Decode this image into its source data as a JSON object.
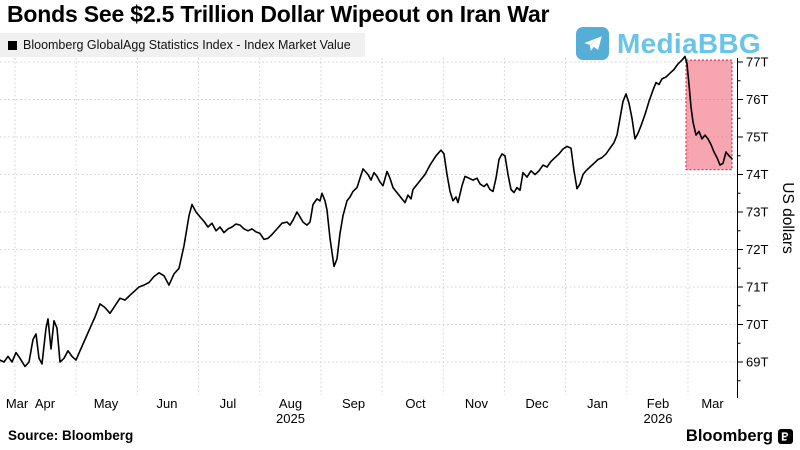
{
  "page": {
    "title": "Bonds See $2.5 Trillion Dollar Wipeout on Iran War"
  },
  "legend": {
    "marker_color": "#000000",
    "series_label": "Bloomberg GlobalAgg Statistics Index - Index Market Value"
  },
  "watermark": {
    "text": "MediaBBG",
    "icon": "telegram-paper-plane-icon",
    "icon_color": "#55aed8",
    "text_color": "#69c4e9"
  },
  "footer": {
    "source": "Source: Bloomberg",
    "brand": "Bloomberg"
  },
  "colors": {
    "line": "#000000",
    "highlight_fill": "rgba(238,75,100,0.5)",
    "highlight_border": "#d63a52",
    "grid": "#cfcfcf"
  },
  "chart_data": {
    "type": "line",
    "title": "Bonds See $2.5 Trillion Dollar Wipeout on Iran War",
    "x_axis": {
      "unit": "months, 0 = Mar 1 2025 (axis spans late Mar 2025 - late Mar 2026)",
      "range": [
        0.755,
        12.801
      ],
      "month_gridlines": [
        1,
        2,
        3,
        4,
        5,
        6,
        7,
        8,
        9,
        10,
        11,
        12
      ],
      "labels": [
        {
          "text": "Mar",
          "m": 1.033
        },
        {
          "text": "Apr",
          "m": 1.49
        },
        {
          "text": "May",
          "m": 2.487
        },
        {
          "text": "Jun",
          "m": 3.484
        },
        {
          "text": "Jul",
          "m": 4.481
        },
        {
          "text": "Aug",
          "m": 5.503
        },
        {
          "text": "Sep",
          "m": 6.533
        },
        {
          "text": "Oct",
          "m": 7.546
        },
        {
          "text": "Nov",
          "m": 8.543
        },
        {
          "text": "Dec",
          "m": 9.532
        },
        {
          "text": "Jan",
          "m": 10.521
        },
        {
          "text": "Feb",
          "m": 11.51
        },
        {
          "text": "Mar",
          "m": 12.401
        }
      ],
      "year_labels": [
        {
          "text": "2025",
          "m": 5.503
        },
        {
          "text": "2026",
          "m": 11.51
        }
      ]
    },
    "y_axis": {
      "label": "US dollars",
      "unit": "trillion USD",
      "range": [
        68.1,
        77.2
      ],
      "tick_values": [
        69,
        70,
        71,
        72,
        73,
        74,
        75,
        76,
        77
      ],
      "tick_labels": [
        "69T",
        "70T",
        "71T",
        "72T",
        "73T",
        "74T",
        "75T",
        "76T",
        "77T"
      ],
      "minor_ticks": [
        68.5,
        69.5,
        70.5,
        71.5,
        72.5,
        73.5,
        74.5,
        75.5,
        76.5
      ]
    },
    "highlight_region": {
      "x_start": 11.967,
      "x_end": 12.719,
      "v_top": 77.05,
      "v_bottom": 74.13
    },
    "grid": true,
    "legend_position": "top-left",
    "series": [
      {
        "name": "Bloomberg GlobalAgg Statistics Index - Index Market Value",
        "color": "#000000",
        "x": [
          0.755,
          0.82,
          0.886,
          0.951,
          1.016,
          1.082,
          1.163,
          1.229,
          1.294,
          1.343,
          1.392,
          1.441,
          1.507,
          1.539,
          1.588,
          1.637,
          1.687,
          1.736,
          1.801,
          1.866,
          1.932,
          1.997,
          2.062,
          2.144,
          2.226,
          2.308,
          2.389,
          2.471,
          2.553,
          2.634,
          2.716,
          2.798,
          2.88,
          2.961,
          3.027,
          3.109,
          3.19,
          3.272,
          3.354,
          3.436,
          3.517,
          3.599,
          3.681,
          3.763,
          3.844,
          3.893,
          3.959,
          4.024,
          4.089,
          4.155,
          4.22,
          4.285,
          4.351,
          4.416,
          4.482,
          4.547,
          4.612,
          4.678,
          4.743,
          4.809,
          4.874,
          4.939,
          5.005,
          5.07,
          5.135,
          5.201,
          5.283,
          5.364,
          5.446,
          5.495,
          5.544,
          5.609,
          5.659,
          5.708,
          5.773,
          5.822,
          5.871,
          5.936,
          5.985,
          6.018,
          6.067,
          6.1,
          6.149,
          6.214,
          6.263,
          6.312,
          6.361,
          6.427,
          6.476,
          6.525,
          6.59,
          6.639,
          6.688,
          6.77,
          6.819,
          6.868,
          6.917,
          6.966,
          7.015,
          7.08,
          7.129,
          7.178,
          7.227,
          7.276,
          7.325,
          7.374,
          7.423,
          7.472,
          7.505,
          7.603,
          7.701,
          7.783,
          7.881,
          7.963,
          8.012,
          8.061,
          8.11,
          8.159,
          8.208,
          8.241,
          8.306,
          8.355,
          8.42,
          8.486,
          8.551,
          8.6,
          8.665,
          8.714,
          8.763,
          8.813,
          8.862,
          8.911,
          8.96,
          9.009,
          9.058,
          9.107,
          9.156,
          9.205,
          9.254,
          9.303,
          9.369,
          9.434,
          9.499,
          9.565,
          9.63,
          9.696,
          9.761,
          9.826,
          9.892,
          9.957,
          10.022,
          10.088,
          10.137,
          10.186,
          10.235,
          10.284,
          10.333,
          10.399,
          10.464,
          10.529,
          10.595,
          10.66,
          10.725,
          10.791,
          10.84,
          10.889,
          10.938,
          10.987,
          11.036,
          11.085,
          11.134,
          11.183,
          11.232,
          11.298,
          11.363,
          11.428,
          11.477,
          11.527,
          11.576,
          11.641,
          11.706,
          11.772,
          11.837,
          11.902,
          11.951,
          11.984,
          12.017,
          12.049,
          12.082,
          12.131,
          12.18,
          12.229,
          12.278,
          12.327,
          12.376,
          12.425,
          12.474,
          12.523,
          12.572,
          12.621,
          12.67,
          12.719
        ],
        "values": [
          69.05,
          69.0,
          69.15,
          69.0,
          69.25,
          69.1,
          68.88,
          69.0,
          69.6,
          69.75,
          69.1,
          68.95,
          69.9,
          70.15,
          69.35,
          70.1,
          69.9,
          69.0,
          69.1,
          69.3,
          69.15,
          69.05,
          69.3,
          69.6,
          69.9,
          70.2,
          70.55,
          70.45,
          70.3,
          70.5,
          70.7,
          70.65,
          70.78,
          70.9,
          71.0,
          71.05,
          71.12,
          71.28,
          71.38,
          71.3,
          71.05,
          71.35,
          71.5,
          72.1,
          72.9,
          73.2,
          73.0,
          72.87,
          72.75,
          72.6,
          72.7,
          72.5,
          72.6,
          72.45,
          72.55,
          72.6,
          72.68,
          72.65,
          72.55,
          72.5,
          72.55,
          72.47,
          72.43,
          72.27,
          72.3,
          72.4,
          72.55,
          72.7,
          72.73,
          72.65,
          72.78,
          73.0,
          72.87,
          72.73,
          72.65,
          72.73,
          73.2,
          73.35,
          73.3,
          73.5,
          73.3,
          73.05,
          72.3,
          71.55,
          71.75,
          72.43,
          72.9,
          73.3,
          73.4,
          73.55,
          73.65,
          73.9,
          74.15,
          74.0,
          73.85,
          74.05,
          73.95,
          73.8,
          73.7,
          74.08,
          73.9,
          73.65,
          73.55,
          73.45,
          73.35,
          73.25,
          73.45,
          73.35,
          73.6,
          73.8,
          74.0,
          74.25,
          74.5,
          74.65,
          74.55,
          74.0,
          73.55,
          73.3,
          73.4,
          73.25,
          73.7,
          73.95,
          73.9,
          73.85,
          73.9,
          73.75,
          73.68,
          73.75,
          73.6,
          73.55,
          73.9,
          74.4,
          74.55,
          74.5,
          74.0,
          73.6,
          73.52,
          73.65,
          73.58,
          74.05,
          73.93,
          74.1,
          74.0,
          74.1,
          74.25,
          74.2,
          74.35,
          74.45,
          74.55,
          74.68,
          74.75,
          74.7,
          74.1,
          73.62,
          73.75,
          74.0,
          74.1,
          74.2,
          74.3,
          74.4,
          74.45,
          74.55,
          74.7,
          74.85,
          75.05,
          75.5,
          75.95,
          76.15,
          75.9,
          75.5,
          74.95,
          75.1,
          75.3,
          75.6,
          75.95,
          76.25,
          76.45,
          76.4,
          76.55,
          76.6,
          76.7,
          76.8,
          76.95,
          77.05,
          77.15,
          76.95,
          76.4,
          75.8,
          75.4,
          75.05,
          75.15,
          74.95,
          75.05,
          74.95,
          74.8,
          74.6,
          74.45,
          74.25,
          74.3,
          74.6,
          74.5,
          74.42
        ]
      }
    ]
  }
}
